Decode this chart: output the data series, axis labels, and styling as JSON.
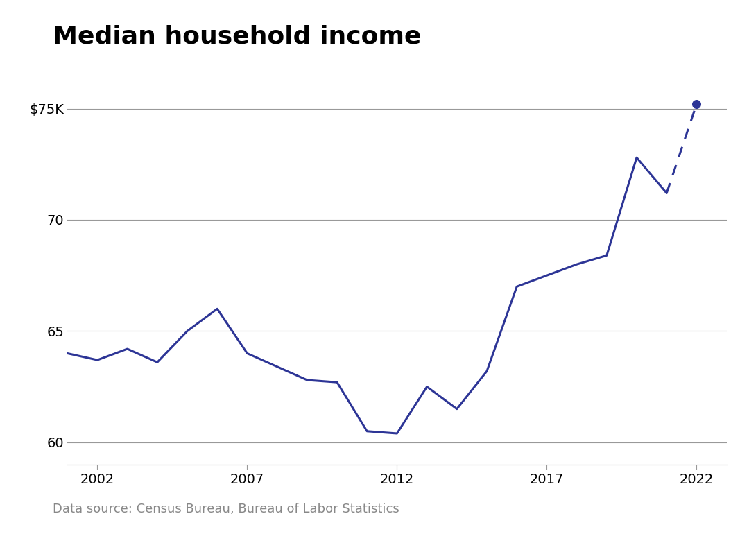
{
  "title": "Median household income",
  "source_text": "Data source: Census Bureau, Bureau of Labor Statistics",
  "solid_years": [
    2001,
    2002,
    2003,
    2004,
    2005,
    2006,
    2007,
    2008,
    2009,
    2010,
    2011,
    2012,
    2013,
    2014,
    2015,
    2016,
    2017,
    2018,
    2019,
    2020,
    2021
  ],
  "solid_values": [
    64.0,
    63.7,
    64.2,
    63.6,
    65.0,
    66.0,
    64.0,
    63.4,
    62.8,
    62.7,
    60.5,
    60.4,
    62.5,
    61.5,
    63.2,
    67.0,
    67.5,
    68.0,
    68.4,
    72.8,
    71.2
  ],
  "dashed_years": [
    2021,
    2022
  ],
  "dashed_values": [
    71.2,
    75.2
  ],
  "line_color": "#2d3596",
  "dot_color": "#2d3596",
  "yticks": [
    60,
    65,
    70,
    75
  ],
  "ylim": [
    59.0,
    77.0
  ],
  "xlim": [
    2001,
    2023
  ],
  "xticks": [
    2002,
    2007,
    2012,
    2017,
    2022
  ],
  "background_color": "#ffffff",
  "grid_color": "#999999",
  "title_fontsize": 26,
  "axis_fontsize": 14,
  "source_fontsize": 13,
  "line_width": 2.2,
  "dot_size": 70
}
